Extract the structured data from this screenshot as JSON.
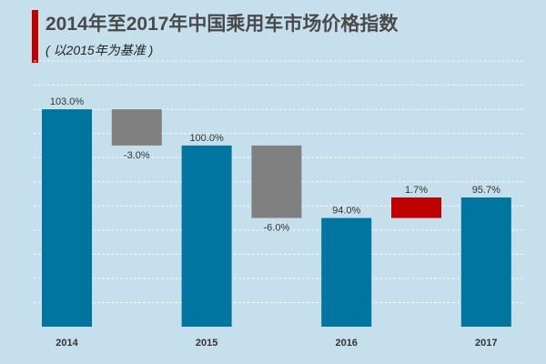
{
  "chart_data": {
    "type": "bar",
    "subtype": "waterfall",
    "title": "2014年至2017年中国乘用车市场价格指数",
    "subtitle": "( 以2015年为基准 )",
    "categories": [
      "2014",
      "",
      "2015",
      "",
      "2016",
      "",
      "2017"
    ],
    "bars": [
      {
        "category": "2014",
        "kind": "total",
        "start": 85,
        "end": 103.0,
        "label": "103.0%"
      },
      {
        "category": "",
        "kind": "decrease",
        "start": 103.0,
        "end": 100.0,
        "label": "-3.0%"
      },
      {
        "category": "2015",
        "kind": "total",
        "start": 85,
        "end": 100.0,
        "label": "100.0%"
      },
      {
        "category": "",
        "kind": "decrease",
        "start": 100.0,
        "end": 94.0,
        "label": "-6.0%"
      },
      {
        "category": "2016",
        "kind": "total",
        "start": 85,
        "end": 94.0,
        "label": "94.0%"
      },
      {
        "category": "",
        "kind": "increase",
        "start": 94.0,
        "end": 95.7,
        "label": "1.7%"
      },
      {
        "category": "2017",
        "kind": "total",
        "start": 85,
        "end": 95.7,
        "label": "95.7%"
      }
    ],
    "ylim": [
      85,
      107
    ],
    "grid_step": 2,
    "grid": true,
    "colors": {
      "total": "#0075a0",
      "decrease": "#808080",
      "increase": "#c00000",
      "accent": "#c00000"
    }
  }
}
